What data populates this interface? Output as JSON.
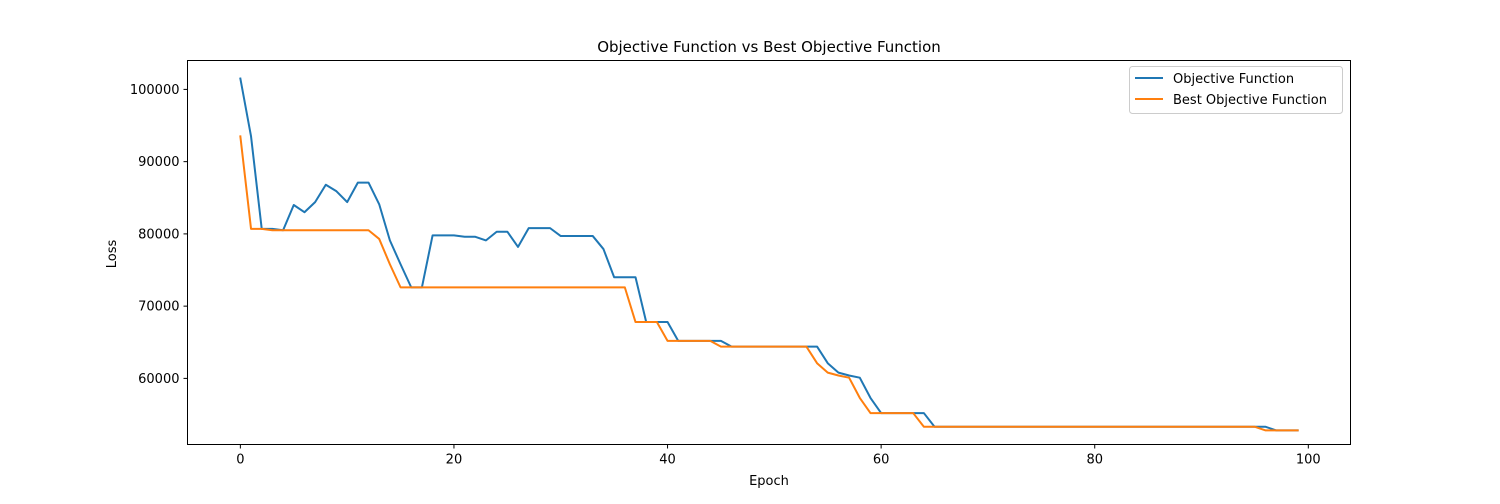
{
  "chart_data": {
    "type": "line",
    "title": "Objective Function vs Best Objective Function",
    "xlabel": "Epoch",
    "ylabel": "Loss",
    "xlim": [
      -4.95,
      103.95
    ],
    "ylim": [
      50850,
      104000
    ],
    "xticks": [
      0,
      20,
      40,
      60,
      80,
      100
    ],
    "yticks": [
      60000,
      70000,
      80000,
      90000,
      100000
    ],
    "grid": false,
    "legend_position": "top-right",
    "x": [
      0,
      1,
      2,
      3,
      4,
      5,
      6,
      7,
      8,
      9,
      10,
      11,
      12,
      13,
      14,
      15,
      16,
      17,
      18,
      19,
      20,
      21,
      22,
      23,
      24,
      25,
      26,
      27,
      28,
      29,
      30,
      31,
      32,
      33,
      34,
      35,
      36,
      37,
      38,
      39,
      40,
      41,
      42,
      43,
      44,
      45,
      46,
      47,
      48,
      49,
      50,
      51,
      52,
      53,
      54,
      55,
      56,
      57,
      58,
      59,
      60,
      61,
      62,
      63,
      64,
      65,
      66,
      67,
      68,
      69,
      70,
      71,
      72,
      73,
      74,
      75,
      76,
      77,
      78,
      79,
      80,
      81,
      82,
      83,
      84,
      85,
      86,
      87,
      88,
      89,
      90,
      91,
      92,
      93,
      94,
      95,
      96,
      97,
      98,
      99
    ],
    "series": [
      {
        "name": "Objective Function",
        "color": "#1f77b4",
        "values": [
          101500,
          93500,
          80700,
          80700,
          80500,
          84000,
          83000,
          84400,
          86800,
          85900,
          84400,
          87100,
          87100,
          84100,
          79100,
          75800,
          72600,
          72600,
          79800,
          79800,
          79800,
          79600,
          79600,
          79100,
          80300,
          80300,
          78200,
          80800,
          80800,
          80800,
          79700,
          79700,
          79700,
          79700,
          77900,
          74000,
          74000,
          74000,
          67800,
          67800,
          67800,
          65200,
          65200,
          65200,
          65200,
          65200,
          64400,
          64400,
          64400,
          64400,
          64400,
          64400,
          64400,
          64400,
          64400,
          62100,
          60800,
          60400,
          60100,
          57300,
          55200,
          55200,
          55200,
          55200,
          55200,
          53300,
          53300,
          53300,
          53300,
          53300,
          53300,
          53300,
          53300,
          53300,
          53300,
          53300,
          53300,
          53300,
          53300,
          53300,
          53300,
          53300,
          53300,
          53300,
          53300,
          53300,
          53300,
          53300,
          53300,
          53300,
          53300,
          53300,
          53300,
          53300,
          53300,
          53300,
          53300,
          52800,
          52800,
          52800
        ]
      },
      {
        "name": "Best Objective Function",
        "color": "#ff7f0e",
        "values": [
          93500,
          80700,
          80700,
          80500,
          80500,
          80500,
          80500,
          80500,
          80500,
          80500,
          80500,
          80500,
          80500,
          79300,
          75800,
          72600,
          72600,
          72600,
          72600,
          72600,
          72600,
          72600,
          72600,
          72600,
          72600,
          72600,
          72600,
          72600,
          72600,
          72600,
          72600,
          72600,
          72600,
          72600,
          72600,
          72600,
          72600,
          67800,
          67800,
          67800,
          65200,
          65200,
          65200,
          65200,
          65200,
          64400,
          64400,
          64400,
          64400,
          64400,
          64400,
          64400,
          64400,
          64400,
          62100,
          60800,
          60400,
          60100,
          57300,
          55200,
          55200,
          55200,
          55200,
          55200,
          53300,
          53300,
          53300,
          53300,
          53300,
          53300,
          53300,
          53300,
          53300,
          53300,
          53300,
          53300,
          53300,
          53300,
          53300,
          53300,
          53300,
          53300,
          53300,
          53300,
          53300,
          53300,
          53300,
          53300,
          53300,
          53300,
          53300,
          53300,
          53300,
          53300,
          53300,
          53300,
          52800,
          52800,
          52800,
          52800
        ]
      }
    ]
  }
}
